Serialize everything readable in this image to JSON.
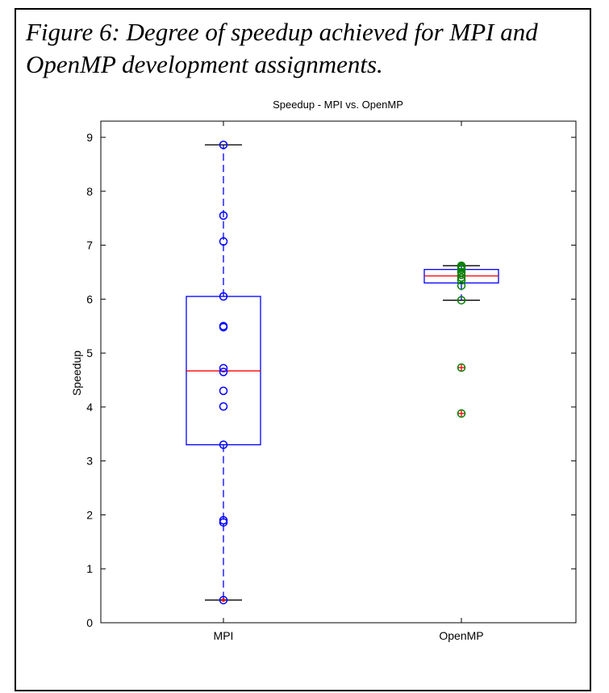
{
  "figure": {
    "caption": "Figure 6: Degree of speedup achieved for MPI and OpenMP development assignments."
  },
  "colors": {
    "box": "#0000ff",
    "median": "#ff0000",
    "whisker_cap": "#000000",
    "mpi_points": "#0000ff",
    "openmp_points": "#008000",
    "outlier_marker": "#ff0000"
  },
  "chart_data": {
    "type": "box",
    "title": "Speedup - MPI vs. OpenMP",
    "xlabel": "",
    "ylabel": "Speedup",
    "ylim": [
      0,
      9.3
    ],
    "yticks": [
      0,
      1,
      2,
      3,
      4,
      5,
      6,
      7,
      8,
      9
    ],
    "categories": [
      "MPI",
      "OpenMP"
    ],
    "grid": false,
    "boxes": [
      {
        "name": "MPI",
        "q1": 3.3,
        "median": 4.67,
        "q3": 6.05,
        "whisker_low": 0.42,
        "whisker_high": 8.86,
        "points": [
          8.86,
          7.55,
          7.07,
          6.05,
          5.5,
          5.48,
          4.72,
          4.65,
          4.3,
          4.01,
          3.3,
          1.9,
          1.86,
          0.42
        ],
        "outliers": []
      },
      {
        "name": "OpenMP",
        "q1": 6.3,
        "median": 6.43,
        "q3": 6.55,
        "whisker_low": 5.98,
        "whisker_high": 6.62,
        "points": [
          6.62,
          6.6,
          6.58,
          6.55,
          6.5,
          6.45,
          6.4,
          6.35,
          6.25,
          5.98
        ],
        "outliers": [
          4.73,
          3.88
        ]
      }
    ]
  }
}
